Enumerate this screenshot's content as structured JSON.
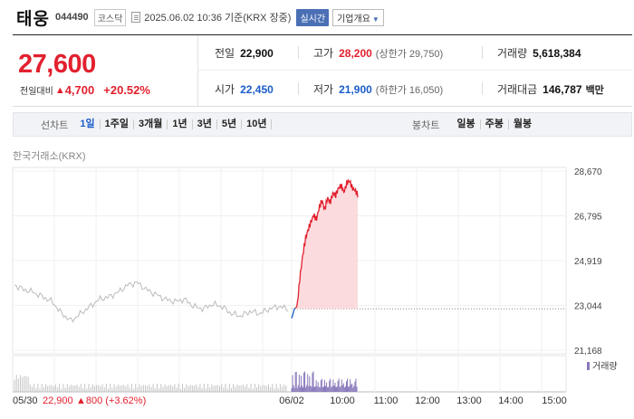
{
  "header": {
    "name": "태웅",
    "code": "044490",
    "market": "코스닥",
    "datetime": "2025.06.02 10:36  기준(KRX 장중)",
    "realtime_label": "실시간",
    "corp_info_label": "기업개요"
  },
  "price": {
    "current": "27,600",
    "change_label": "전일대비",
    "change": "4,700",
    "change_pct": "+20.52%"
  },
  "stats": {
    "prev_close_label": "전일",
    "prev_close": "22,900",
    "high_label": "고가",
    "high": "28,200",
    "upper_limit": "(상한가 29,750)",
    "volume_label": "거래량",
    "volume": "5,618,384",
    "open_label": "시가",
    "open": "22,450",
    "low_label": "저가",
    "low": "21,900",
    "lower_limit": "(하한가 16,050)",
    "amount_label": "거래대금",
    "amount": "146,787",
    "amount_unit": "백만"
  },
  "toolbar": {
    "line_label": "선차트",
    "periods": [
      "1일",
      "1주일",
      "3개월",
      "1년",
      "3년",
      "5년",
      "10년"
    ],
    "candle_label": "봉차트",
    "candle_periods": [
      "일봉",
      "주봉",
      "월봉"
    ]
  },
  "chart": {
    "exchange_label": "한국거래소(KRX)",
    "volume_label": "거래량",
    "footer_text": "05/30 22,900 ▲800 (+3.62%)",
    "footer_date": "05/30",
    "footer_close": "22,900",
    "footer_change": "▲800 (+3.62%)",
    "colors": {
      "up": "#e2202e",
      "down": "#1a5cc9",
      "prev": "#bbbbbb",
      "volume": "#8877bb"
    }
  },
  "chart_data": {
    "type": "line",
    "title": "",
    "y_ticks": [
      28670,
      26795,
      24919,
      23044,
      21168
    ],
    "ylim": [
      21168,
      28670
    ],
    "baseline": 22900,
    "x_tick_labels": [
      "06/02",
      "10:00",
      "11:00",
      "12:00",
      "13:00",
      "14:00",
      "15:00"
    ],
    "series": [
      {
        "values_prev_day": [
          23900,
          23700,
          23600,
          23400,
          23200,
          22700,
          22400,
          22700,
          23000,
          23300,
          23400,
          23600,
          23900,
          24000,
          23700,
          23500,
          23300,
          23200,
          23300,
          23000,
          22900,
          23100,
          23000,
          22700,
          22600,
          22800,
          22700,
          22900,
          23000,
          22900
        ]
      },
      {
        "values_today": [
          22500,
          22900,
          23000,
          24200,
          25100,
          25800,
          26200,
          26500,
          26800,
          26600,
          27100,
          27400,
          27000,
          27500,
          27300,
          27700,
          27600,
          27900,
          28000,
          27700,
          28100,
          28200,
          27900,
          27800,
          27600
        ]
      }
    ]
  }
}
